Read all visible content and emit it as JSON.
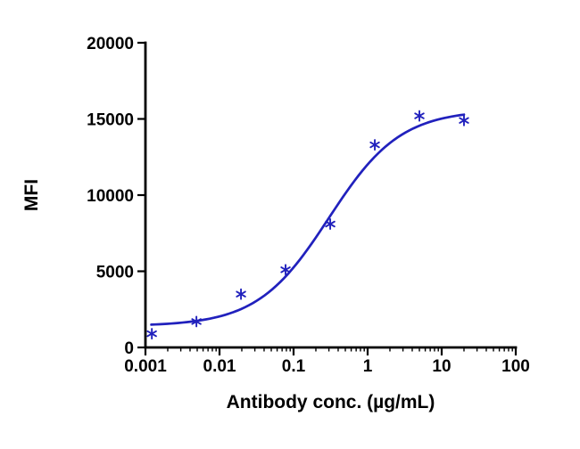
{
  "chart_data": {
    "type": "scatter",
    "title": "",
    "xlabel": "Antibody conc. (µg/mL)",
    "ylabel": "MFI",
    "x_scale": "log10",
    "xlim": [
      0.001,
      100
    ],
    "ylim": [
      0,
      20000
    ],
    "grid": false,
    "legend": "none",
    "x_tick_values": [
      0.001,
      0.01,
      0.1,
      1,
      10,
      100
    ],
    "x_tick_labels": [
      "0.001",
      "0.01",
      "0.1",
      "1",
      "10",
      "100"
    ],
    "y_tick_values": [
      0,
      5000,
      10000,
      15000,
      20000
    ],
    "y_tick_labels": [
      "0",
      "5000",
      "10000",
      "15000",
      "20000"
    ],
    "points": [
      {
        "x": 0.00122,
        "y": 900
      },
      {
        "x": 0.00488,
        "y": 1700
      },
      {
        "x": 0.0195,
        "y": 3500
      },
      {
        "x": 0.078,
        "y": 5100
      },
      {
        "x": 0.3125,
        "y": 8100
      },
      {
        "x": 1.25,
        "y": 13300
      },
      {
        "x": 5,
        "y": 15200
      },
      {
        "x": 20,
        "y": 14900
      }
    ],
    "fit_curve": {
      "model": "4PL",
      "bottom": 1400,
      "top": 15600,
      "ec50": 0.3,
      "hill": 0.9,
      "x_start": 0.0012,
      "x_end": 20
    },
    "marker": "asterisk",
    "colors": {
      "series": "#2121bd",
      "axis": "#000000",
      "background": "#ffffff"
    }
  }
}
